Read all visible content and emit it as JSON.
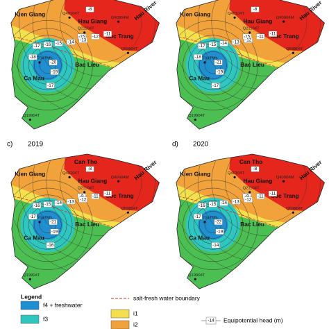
{
  "panels": [
    {
      "places": [
        "Kien Giang",
        "Hau Giang",
        "Soc Trang",
        "Bac Lieu",
        "Ca Mau",
        "Hau River"
      ],
      "wells": [
        "Q40104T",
        "Q21104T",
        "Q40904M",
        "Q59804T",
        "Q17704TM1",
        "Q19904T"
      ],
      "heads": [
        -8,
        -15,
        -11,
        -17,
        -16,
        -15,
        -14,
        -13,
        -12,
        -18,
        -20,
        -19,
        -17
      ]
    },
    {
      "places": [
        "Kien Giang",
        "Hau Giang",
        "Soc Trang",
        "Bac Lieu",
        "Ca Mau",
        "Hau River"
      ],
      "wells": [
        "Q40104T",
        "Q21104T",
        "Q40904M",
        "Q59804T",
        "Q17704TM1",
        "Q19904T"
      ],
      "heads": [
        -8,
        -15,
        -11,
        -17,
        -15,
        -14,
        -13,
        -12,
        -11,
        -18,
        -21,
        -19,
        -17
      ]
    },
    {
      "label": "c)",
      "year": "2019",
      "places": [
        "Can Tho",
        "Kien Giang",
        "Hau Giang",
        "Soc Trang",
        "Bac Lieu",
        "Ca Mau",
        "Hau River"
      ],
      "wells": [
        "Q40104T",
        "Q21104T",
        "Q40904M",
        "Q59804T",
        "Q17704TM1",
        "Q19904T"
      ],
      "heads": [
        -8,
        -9,
        -11,
        -16,
        -15,
        -14,
        -13,
        -12,
        -11,
        -17,
        -21,
        -19,
        -16
      ]
    },
    {
      "label": "d)",
      "year": "2020",
      "places": [
        "Can Tho",
        "Kien Giang",
        "Hau Giang",
        "Soc Trang",
        "Bac Lieu",
        "Ca Mau",
        "Hau River"
      ],
      "wells": [
        "Q40104T",
        "Q21104T",
        "Q40904M",
        "Q59804T",
        "Q17704TM1",
        "Q19904T"
      ],
      "heads": [
        -8,
        -9,
        -11,
        -16,
        -15,
        -14,
        -13,
        -12,
        -11,
        -17,
        -22,
        -19,
        -14
      ]
    }
  ],
  "legend": {
    "title": "Legend",
    "items": [
      {
        "label": "f4 + freshwater",
        "color": "#1f8fd0"
      },
      {
        "label": "f3",
        "color": "#2fc6c0"
      },
      {
        "label": "i1",
        "color": "#f4e04c"
      },
      {
        "label": "i2",
        "color": "#f2a23a"
      }
    ],
    "boundary": "salt-fresh water boundary",
    "head_sample": -14,
    "head_label": "Equipotential head (m)"
  }
}
